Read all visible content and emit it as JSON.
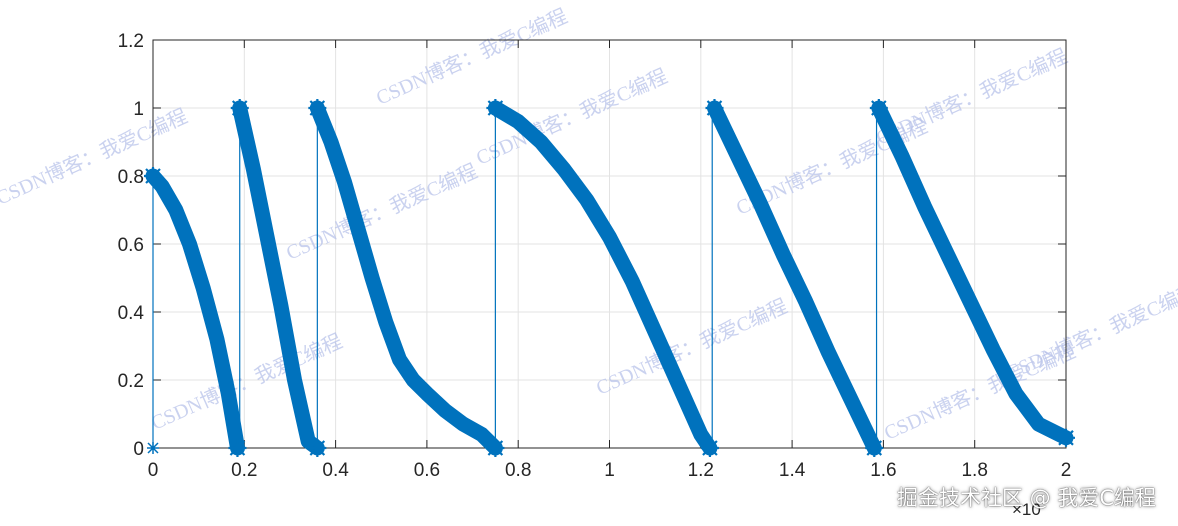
{
  "chart_data": {
    "type": "line",
    "title": "",
    "xlabel": "",
    "ylabel": "",
    "xlim": [
      0,
      2
    ],
    "ylim": [
      0,
      1.2
    ],
    "x_exponent_label": "×10",
    "x_ticks": [
      0,
      0.2,
      0.4,
      0.6,
      0.8,
      1,
      1.2,
      1.4,
      1.6,
      1.8,
      2
    ],
    "x_tick_labels": [
      "0",
      "0.2",
      "0.4",
      "0.6",
      "0.8",
      "1",
      "1.2",
      "1.4",
      "1.6",
      "1.8",
      "2"
    ],
    "y_ticks": [
      0,
      0.2,
      0.4,
      0.6,
      0.8,
      1,
      1.2
    ],
    "y_tick_labels": [
      "0",
      "0.2",
      "0.4",
      "0.6",
      "0.8",
      "1",
      "1.2"
    ],
    "grid": true,
    "marker": "*",
    "colors": {
      "series": "#0072bd",
      "grid": "#e3e3e3",
      "axes": "#262626"
    },
    "series": [
      {
        "segments": [
          {
            "points": [
              [
                0,
                0.8
              ],
              [
                0.02,
                0.77
              ],
              [
                0.05,
                0.7
              ],
              [
                0.08,
                0.6
              ],
              [
                0.11,
                0.47
              ],
              [
                0.14,
                0.32
              ],
              [
                0.165,
                0.16
              ],
              [
                0.185,
                0
              ]
            ]
          },
          {
            "points": [
              [
                0.19,
                1.0
              ],
              [
                0.22,
                0.82
              ],
              [
                0.25,
                0.62
              ],
              [
                0.28,
                0.42
              ],
              [
                0.31,
                0.2
              ],
              [
                0.34,
                0.02
              ],
              [
                0.36,
                0
              ]
            ]
          },
          {
            "points": [
              [
                0.36,
                1.0
              ],
              [
                0.39,
                0.9
              ],
              [
                0.42,
                0.78
              ],
              [
                0.45,
                0.64
              ],
              [
                0.48,
                0.5
              ],
              [
                0.51,
                0.37
              ],
              [
                0.54,
                0.26
              ],
              [
                0.57,
                0.2
              ],
              [
                0.6,
                0.16
              ],
              [
                0.64,
                0.11
              ],
              [
                0.68,
                0.07
              ],
              [
                0.72,
                0.04
              ],
              [
                0.75,
                0
              ]
            ]
          },
          {
            "points": [
              [
                0.75,
                1.0
              ],
              [
                0.8,
                0.96
              ],
              [
                0.85,
                0.9
              ],
              [
                0.9,
                0.82
              ],
              [
                0.95,
                0.73
              ],
              [
                1.0,
                0.62
              ],
              [
                1.05,
                0.49
              ],
              [
                1.1,
                0.34
              ],
              [
                1.15,
                0.19
              ],
              [
                1.2,
                0.04
              ],
              [
                1.22,
                0
              ]
            ]
          },
          {
            "points": [
              [
                1.23,
                1.0
              ],
              [
                1.28,
                0.86
              ],
              [
                1.33,
                0.72
              ],
              [
                1.38,
                0.57
              ],
              [
                1.43,
                0.43
              ],
              [
                1.48,
                0.28
              ],
              [
                1.53,
                0.14
              ],
              [
                1.58,
                0
              ]
            ]
          },
          {
            "points": [
              [
                1.59,
                1.0
              ],
              [
                1.64,
                0.86
              ],
              [
                1.69,
                0.71
              ],
              [
                1.74,
                0.57
              ],
              [
                1.79,
                0.43
              ],
              [
                1.84,
                0.29
              ],
              [
                1.89,
                0.16
              ],
              [
                1.94,
                0.07
              ],
              [
                2.0,
                0.03
              ]
            ]
          }
        ],
        "jumps": [
          [
            [
              0,
              0
            ],
            [
              0,
              0.8
            ]
          ],
          [
            [
              0.19,
              0
            ],
            [
              0.19,
              1.0
            ]
          ],
          [
            [
              0.36,
              0
            ],
            [
              0.36,
              1.0
            ]
          ],
          [
            [
              0.75,
              0
            ],
            [
              0.75,
              1.0
            ]
          ],
          [
            [
              1.225,
              0
            ],
            [
              1.225,
              1.0
            ]
          ],
          [
            [
              1.585,
              0
            ],
            [
              1.585,
              1.0
            ]
          ]
        ]
      }
    ]
  },
  "watermarks": {
    "repeated_text": "CSDN博客：我爱C编程",
    "footer_text": "掘金技术社区 @ 我爱C编程"
  }
}
